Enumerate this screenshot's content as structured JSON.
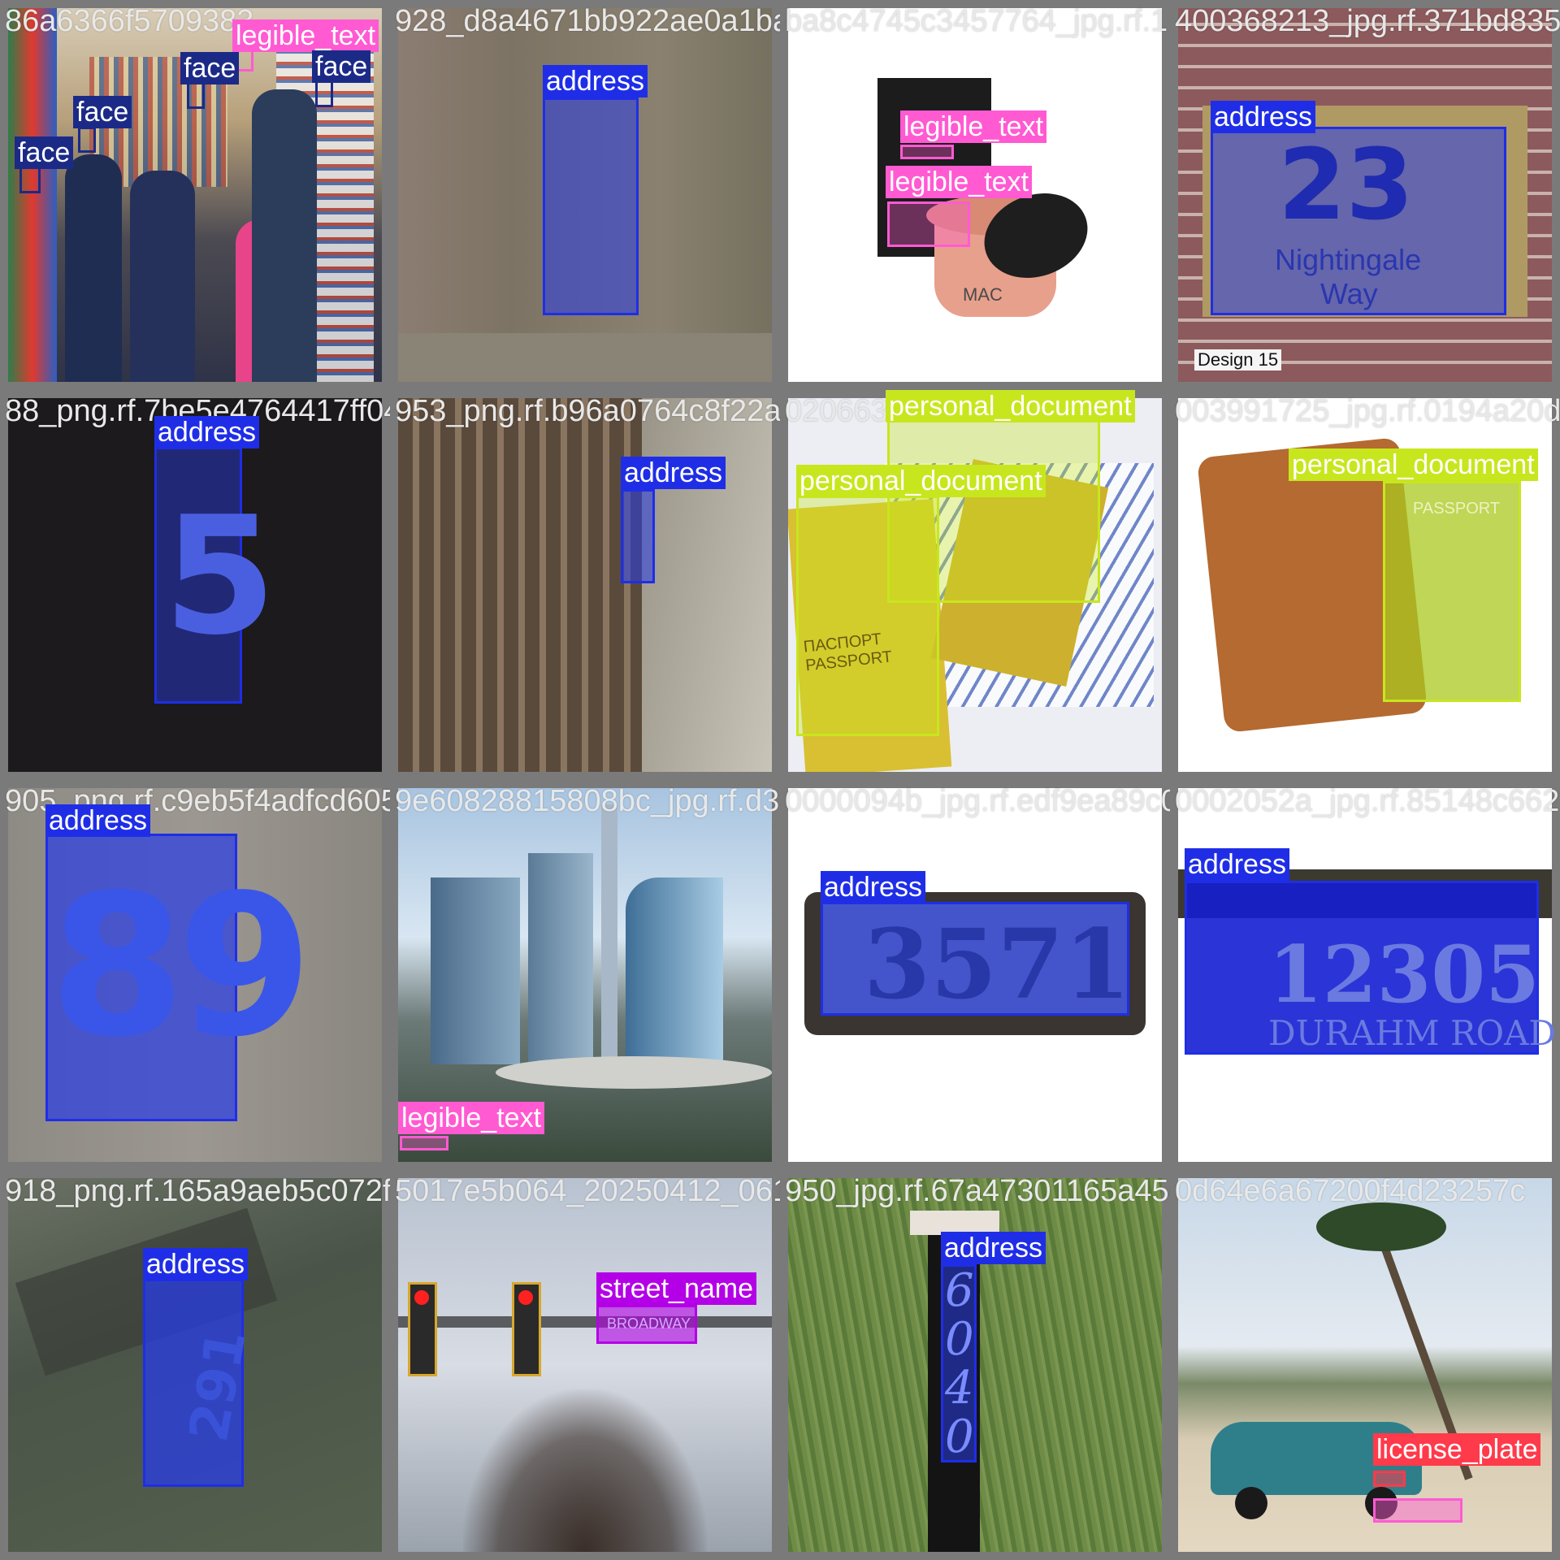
{
  "palette": {
    "address": "#1f2ee6",
    "face": "#1c2a87",
    "legible_text": "#ff5ad2",
    "personal_document": "#c8e61e",
    "street_name": "#b400e6",
    "license_plate": "#ff3a4a"
  },
  "tiles": [
    {
      "filename": "86a6366f5709383",
      "labels": [
        "legible_text",
        "face",
        "face",
        "face",
        "face"
      ]
    },
    {
      "filename": "928_d8a4671bb922ae0a1ba5",
      "labels": [
        "address"
      ]
    },
    {
      "filename": "ba8c4745c3457764_jpg.rf.1",
      "labels": [
        "legible_text",
        "legible_text"
      ],
      "product_text": "MAC"
    },
    {
      "filename": "400368213_jpg.rf.371bd835c",
      "labels": [
        "address"
      ],
      "sign_number": "23",
      "sign_street": "Nightingale",
      "sign_way": "Way",
      "caption": "Design 15"
    },
    {
      "filename": "88_png.rf.7be5e4764417ff04",
      "labels": [
        "address"
      ],
      "digit": "5"
    },
    {
      "filename": "953_png.rf.b96a0764c8f22a60",
      "labels": [
        "address"
      ]
    },
    {
      "filename": "0206631c57f41120c3a6",
      "labels": [
        "personal_document",
        "personal_document"
      ],
      "doc_text": "ПАСПОРТ\nPASSPORT"
    },
    {
      "filename": "003991725_jpg.rf.0194a20da6",
      "labels": [
        "personal_document"
      ],
      "doc_text": "PASSPORT"
    },
    {
      "filename": "905_png.rf.c9eb5f4adfcd605",
      "labels": [
        "address"
      ],
      "digit": "89"
    },
    {
      "filename": "9e60828815808bc_jpg.rf.d3",
      "labels": [
        "legible_text"
      ]
    },
    {
      "filename": "0000094b_jpg.rf.edf9ea89c08",
      "labels": [
        "address"
      ],
      "plaque_number": "3571"
    },
    {
      "filename": "0002052a_jpg.rf.85148c662",
      "labels": [
        "address"
      ],
      "plaque_number": "12305",
      "plaque_street": "DURAHM ROAD"
    },
    {
      "filename": "918_png.rf.165a9aeb5c072f",
      "labels": [
        "address"
      ],
      "digit": "291"
    },
    {
      "filename": "5017e5b064_20250412_061",
      "labels": [
        "street_name"
      ],
      "sign_text": "BROADWAY"
    },
    {
      "filename": "950_jpg.rf.67a47301165a45d",
      "labels": [
        "address"
      ],
      "post_number": "6040"
    },
    {
      "filename": "0d64e6a67200f4d23257c",
      "labels": [
        "license_plate"
      ]
    }
  ]
}
